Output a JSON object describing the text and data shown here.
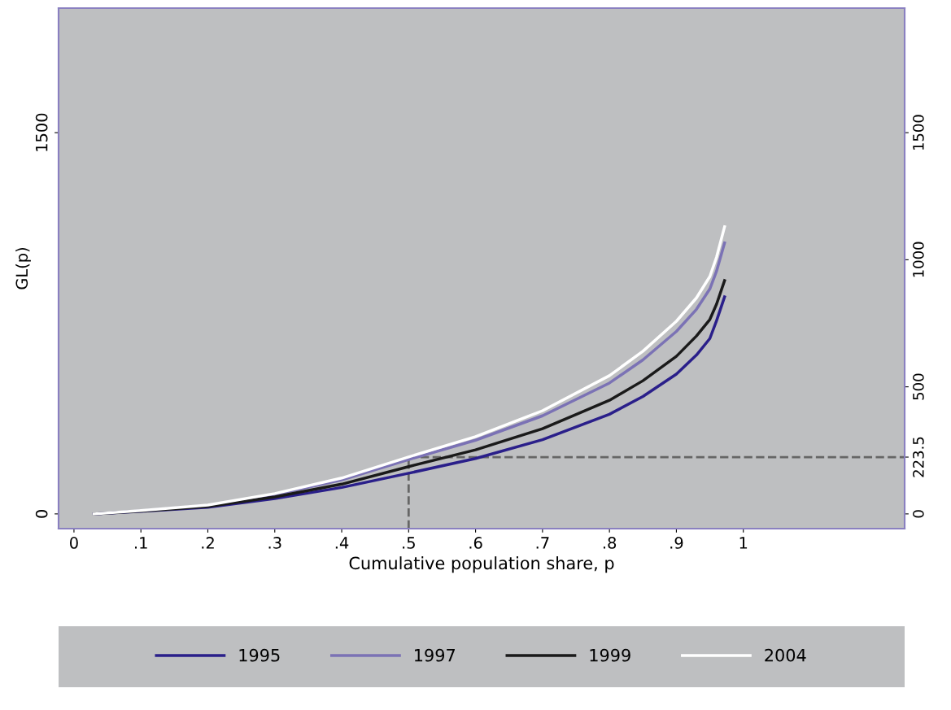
{
  "chart_data": {
    "type": "line",
    "xlabel": "Cumulative population share, p",
    "ylabel": "GL(p)",
    "x": [
      0.03,
      0.1,
      0.2,
      0.3,
      0.4,
      0.5,
      0.6,
      0.7,
      0.8,
      0.85,
      0.9,
      0.93,
      0.95,
      0.96,
      0.972
    ],
    "series": [
      {
        "name": "1995",
        "color": "#2a1f8a",
        "values": [
          0,
          10,
          26,
          60,
          104,
          160,
          218,
          292,
          392,
          462,
          550,
          625,
          690,
          760,
          854
        ]
      },
      {
        "name": "1997",
        "color": "#7b72b5",
        "values": [
          0,
          12,
          33,
          76,
          134,
          214,
          290,
          386,
          515,
          606,
          718,
          805,
          885,
          955,
          1066
        ]
      },
      {
        "name": "1999",
        "color": "#1a1a1a",
        "values": [
          0,
          11,
          29,
          67,
          117,
          186,
          252,
          335,
          447,
          524,
          620,
          700,
          765,
          825,
          918
        ]
      },
      {
        "name": "2004",
        "color": "#ffffff",
        "values": [
          0,
          13,
          35,
          80,
          141,
          224,
          304,
          406,
          544,
          640,
          758,
          850,
          934,
          1010,
          1130
        ]
      }
    ],
    "xlim": [
      -0.023,
      1.241
    ],
    "xticks": [
      {
        "value": 0,
        "label": "0"
      },
      {
        "value": 0.1,
        "label": ".1"
      },
      {
        "value": 0.2,
        "label": ".2"
      },
      {
        "value": 0.3,
        "label": ".3"
      },
      {
        "value": 0.4,
        "label": ".4"
      },
      {
        "value": 0.5,
        "label": ".5"
      },
      {
        "value": 0.6,
        "label": ".6"
      },
      {
        "value": 0.7,
        "label": ".7"
      },
      {
        "value": 0.8,
        "label": ".8"
      },
      {
        "value": 0.9,
        "label": ".9"
      },
      {
        "value": 1,
        "label": "1"
      }
    ],
    "ylim": [
      -58,
      1990
    ],
    "yticks": [
      0,
      1500
    ],
    "y2lim": [
      -58,
      1990
    ],
    "y2ticks": [
      0,
      223.5,
      500,
      1000,
      1500
    ],
    "ref_lines": [
      {
        "axis": "x",
        "value": 0.5,
        "color": "#666666",
        "line_style": "dashed"
      },
      {
        "axis": "y",
        "value": 223.5,
        "color": "#666666",
        "line_style": "dashed"
      }
    ],
    "legend": "bottom",
    "grid": false,
    "marker": "none",
    "line_style": "solid"
  }
}
